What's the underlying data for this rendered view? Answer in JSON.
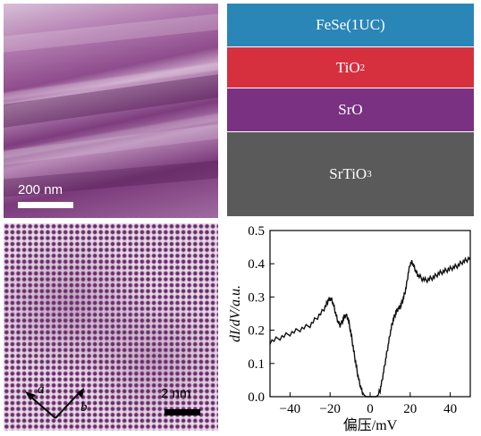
{
  "panel_a": {
    "scale_label": "200 nm"
  },
  "panel_b": {
    "layers": [
      {
        "base": "FeSe(1UC)",
        "sub": ""
      },
      {
        "base": "TiO",
        "sub": "2"
      },
      {
        "base": "SrO",
        "sub": ""
      },
      {
        "base": "SrTiO",
        "sub": "3"
      }
    ],
    "colors": {
      "fese": "#2a86b7",
      "tio2": "#d6303f",
      "sro": "#7a3182",
      "srtio3": "#5a5a5a"
    }
  },
  "panel_c": {
    "scale_label": "2 nm",
    "axis_a": "a",
    "axis_b": "b"
  },
  "chart_data": {
    "type": "line",
    "xlabel": "偏压/mV",
    "ylabel": "dI/dV/a.u.",
    "xlim": [
      -50,
      50
    ],
    "ylim": [
      0,
      0.5
    ],
    "xticks": [
      "−40",
      "−20",
      "0",
      "20",
      "40"
    ],
    "yticks": [
      "0.0",
      "0.1",
      "0.2",
      "0.3",
      "0.4",
      "0.5"
    ],
    "series": [
      {
        "x": [
          -50,
          -46,
          -42,
          -38,
          -34,
          -30,
          -27,
          -24,
          -22,
          -21,
          -20,
          -19,
          -18,
          -17,
          -16,
          -15,
          -14,
          -13,
          -12,
          -11,
          -10,
          -9,
          -8,
          -7,
          -6,
          -5,
          -4,
          -3,
          -2,
          -1,
          0,
          1,
          2,
          3,
          4,
          5,
          6,
          7,
          8,
          9,
          10,
          11,
          12,
          13,
          14,
          15,
          16,
          17,
          18,
          19,
          20,
          21,
          22,
          23,
          24,
          26,
          28,
          30,
          32,
          34,
          36,
          38,
          40,
          42,
          44,
          46,
          48,
          50
        ],
        "y": [
          0.165,
          0.175,
          0.185,
          0.195,
          0.205,
          0.215,
          0.235,
          0.255,
          0.275,
          0.29,
          0.295,
          0.29,
          0.27,
          0.245,
          0.225,
          0.215,
          0.225,
          0.24,
          0.245,
          0.235,
          0.205,
          0.17,
          0.13,
          0.095,
          0.06,
          0.035,
          0.015,
          0.005,
          0.0,
          0.0,
          0.0,
          0.0,
          0.0,
          0.0,
          0.005,
          0.02,
          0.05,
          0.085,
          0.12,
          0.155,
          0.19,
          0.22,
          0.24,
          0.255,
          0.265,
          0.27,
          0.285,
          0.305,
          0.33,
          0.37,
          0.4,
          0.405,
          0.39,
          0.375,
          0.365,
          0.355,
          0.35,
          0.355,
          0.36,
          0.37,
          0.375,
          0.38,
          0.385,
          0.39,
          0.395,
          0.405,
          0.41,
          0.42
        ]
      }
    ],
    "grid": false
  }
}
